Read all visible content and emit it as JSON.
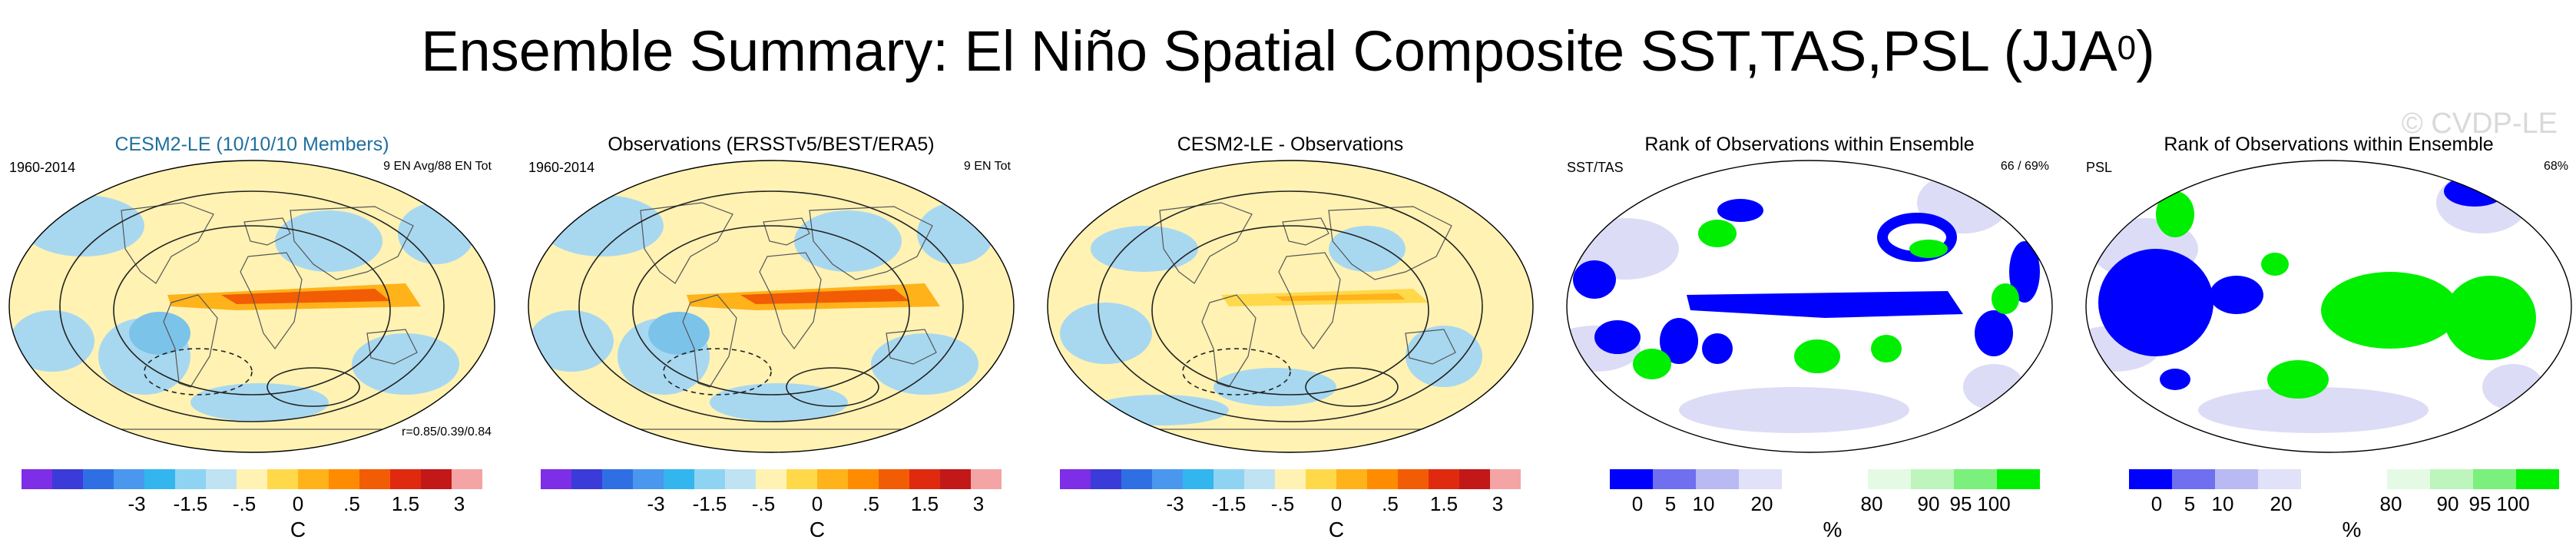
{
  "title": "Ensemble Summary: El Niño Spatial Composite SST,TAS,PSL (JJA",
  "title_superscript": "0",
  "title_close": ")",
  "watermark": "© CVDP-LE",
  "panels": [
    {
      "title": "CESM2-LE (10/10/10 Members)",
      "left_label": "1960-2014",
      "right_label": "9 EN Avg/88 EN Tot",
      "corr_label": "r=0.85/0.39/0.84",
      "map_type": "anomaly",
      "colorbar_type": "anomaly"
    },
    {
      "title": "Observations (ERSSTv5/BEST/ERA5)",
      "left_label": "1960-2014",
      "right_label": "9 EN Tot",
      "corr_label": "",
      "map_type": "anomaly",
      "colorbar_type": "anomaly"
    },
    {
      "title": "CESM2-LE - Observations",
      "left_label": "",
      "right_label": "",
      "corr_label": "",
      "map_type": "difference",
      "colorbar_type": "anomaly"
    },
    {
      "title": "Rank of Observations within Ensemble",
      "left_label": "SST/TAS",
      "right_label": "66 /  69%",
      "corr_label": "",
      "map_type": "rank",
      "colorbar_type": "rank"
    },
    {
      "title": "Rank of Observations within Ensemble",
      "left_label": "PSL",
      "right_label": "68%",
      "corr_label": "",
      "map_type": "rank",
      "colorbar_type": "rank"
    }
  ],
  "colorbars": {
    "anomaly": {
      "unit": "C",
      "tick_labels": [
        "-3",
        "-1.5",
        "-.5",
        "0",
        ".5",
        "1.5",
        "3"
      ],
      "colors": [
        "#7d2ee6",
        "#3b3bd9",
        "#2f6fe3",
        "#4a97ef",
        "#33b5ee",
        "#8fd3f2",
        "#bfe3f2",
        "#fff2b3",
        "#ffd94a",
        "#ffb21a",
        "#ff8c00",
        "#f25c05",
        "#e02a10",
        "#c21818",
        "#f4a4a4"
      ]
    },
    "rank": {
      "unit": "%",
      "tick_labels": [
        "0",
        "5",
        "10",
        "20",
        "80",
        "90",
        "95",
        "100"
      ],
      "colors": [
        "#0000ff",
        "#6f6ff0",
        "#b9b9f3",
        "#e1e1f9",
        "#ffffff",
        "#ffffff",
        "#e4fae4",
        "#bdf5bd",
        "#7cf07c",
        "#00ee00"
      ]
    }
  },
  "colors": {
    "title_highlight": "#1f6f9e",
    "map_base_yellow": "#fff2b3",
    "rank_low": "#0000ff",
    "rank_high": "#00ee00"
  }
}
